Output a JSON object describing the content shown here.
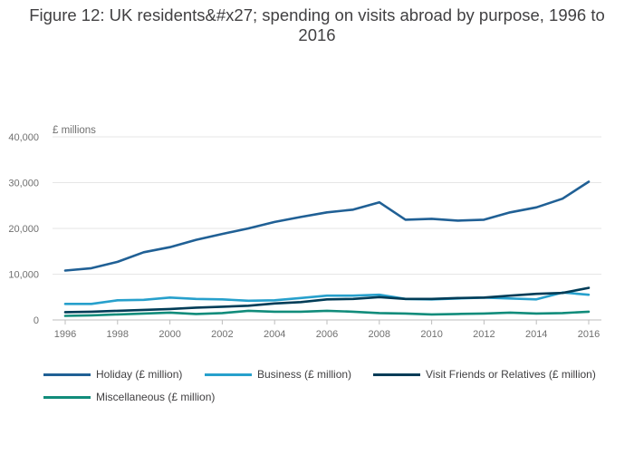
{
  "chart_data": {
    "type": "line",
    "title": "Figure 12: UK residents&#x27; spending on visits abroad by purpose, 1996 to 2016",
    "unit_label": "£ millions",
    "xlabel": "",
    "ylabel": "£ millions",
    "xlim": [
      1996,
      2016
    ],
    "ylim": [
      0,
      40000
    ],
    "yticks": [
      0,
      10000,
      20000,
      30000,
      40000
    ],
    "ytick_labels": [
      "0",
      "10,000",
      "20,000",
      "30,000",
      "40,000"
    ],
    "xticks": [
      1996,
      1998,
      2000,
      2002,
      2004,
      2006,
      2008,
      2010,
      2012,
      2014,
      2016
    ],
    "xtick_labels": [
      "1996",
      "1998",
      "2000",
      "2002",
      "2004",
      "2006",
      "2008",
      "2010",
      "2012",
      "2014",
      "2016"
    ],
    "x": [
      1996,
      1997,
      1998,
      1999,
      2000,
      2001,
      2002,
      2003,
      2004,
      2005,
      2006,
      2007,
      2008,
      2009,
      2010,
      2011,
      2012,
      2013,
      2014,
      2015,
      2016
    ],
    "grid": true,
    "legend_position": "bottom",
    "series": [
      {
        "name": "Holiday (£ million)",
        "color": "#206095",
        "values": [
          10800,
          11300,
          12700,
          14800,
          15900,
          17500,
          18800,
          20000,
          21400,
          22500,
          23500,
          24100,
          25700,
          21900,
          22100,
          21700,
          21900,
          23500,
          24600,
          26500,
          30200
        ]
      },
      {
        "name": "Business (£ million)",
        "color": "#27a0cc",
        "values": [
          3500,
          3500,
          4300,
          4400,
          4900,
          4600,
          4500,
          4200,
          4300,
          4800,
          5300,
          5300,
          5500,
          4600,
          4500,
          4700,
          4900,
          4700,
          4500,
          6000,
          5500
        ]
      },
      {
        "name": "Visit Friends or Relatives (£ million)",
        "color": "#003c57",
        "values": [
          1700,
          1800,
          2000,
          2200,
          2400,
          2700,
          2900,
          3100,
          3600,
          3900,
          4500,
          4600,
          5000,
          4600,
          4600,
          4800,
          4900,
          5300,
          5700,
          5900,
          7000
        ]
      },
      {
        "name": "Miscellaneous (£ million)",
        "color": "#118c7b",
        "values": [
          900,
          1000,
          1200,
          1400,
          1600,
          1300,
          1500,
          2000,
          1800,
          1800,
          2000,
          1800,
          1500,
          1400,
          1200,
          1300,
          1400,
          1600,
          1400,
          1500,
          1800
        ]
      }
    ]
  }
}
